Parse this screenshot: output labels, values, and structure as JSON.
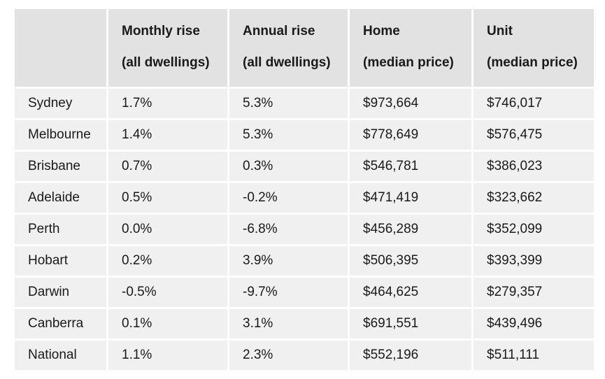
{
  "table": {
    "headers": [
      {
        "line1": "",
        "line2": ""
      },
      {
        "line1": "Monthly rise",
        "line2": "(all dwellings)"
      },
      {
        "line1": "Annual rise",
        "line2": "(all dwellings)"
      },
      {
        "line1": "Home",
        "line2": "(median price)"
      },
      {
        "line1": "Unit",
        "line2": "(median price)"
      }
    ],
    "rows": [
      [
        "Sydney",
        "1.7%",
        "5.3%",
        "$973,664",
        "$746,017"
      ],
      [
        "Melbourne",
        "1.4%",
        "5.3%",
        "$778,649",
        "$576,475"
      ],
      [
        "Brisbane",
        "0.7%",
        "0.3%",
        "$546,781",
        "$386,023"
      ],
      [
        "Adelaide",
        "0.5%",
        "-0.2%",
        "$471,419",
        "$323,662"
      ],
      [
        "Perth",
        "0.0%",
        "-6.8%",
        "$456,289",
        "$352,099"
      ],
      [
        "Hobart",
        "0.2%",
        "3.9%",
        "$506,395",
        "$393,399"
      ],
      [
        "Darwin",
        "-0.5%",
        "-9.7%",
        "$464,625",
        "$279,357"
      ],
      [
        "Canberra",
        "0.1%",
        "3.1%",
        "$691,551",
        "$439,496"
      ],
      [
        "National",
        "1.1%",
        "2.3%",
        "$552,196",
        "$511,111"
      ]
    ]
  }
}
